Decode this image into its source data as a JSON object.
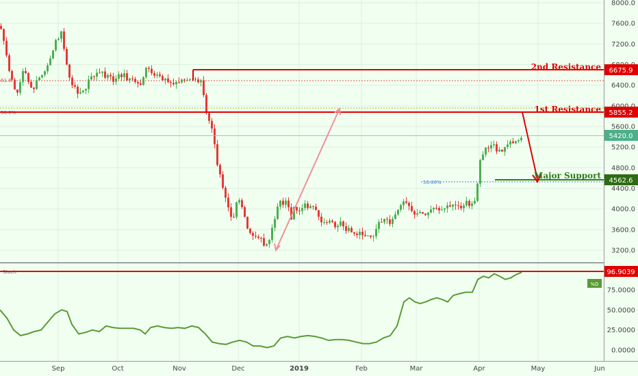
{
  "chart_data": [
    {
      "type": "candlestick",
      "title": "",
      "ylim": [
        3000,
        8000
      ],
      "y_ticks": [
        8000.0,
        7600.0,
        7200.0,
        6800.0,
        6400.0,
        6000.0,
        5600.0,
        5200.0,
        4800.0,
        4400.0,
        4000.0,
        3600.0,
        3200.0
      ],
      "x_ticks": [
        "Sep",
        "Oct",
        "Nov",
        "Dec",
        "2019",
        "Feb",
        "Mar",
        "Apr",
        "May",
        "Jun"
      ],
      "price_path": [
        [
          0,
          7550
        ],
        [
          8,
          7000
        ],
        [
          15,
          6500
        ],
        [
          22,
          6200
        ],
        [
          32,
          6700
        ],
        [
          45,
          6300
        ],
        [
          58,
          6600
        ],
        [
          68,
          6800
        ],
        [
          78,
          7200
        ],
        [
          88,
          7450
        ],
        [
          96,
          6750
        ],
        [
          104,
          6400
        ],
        [
          115,
          6250
        ],
        [
          125,
          6400
        ],
        [
          135,
          6600
        ],
        [
          145,
          6700
        ],
        [
          155,
          6550
        ],
        [
          165,
          6500
        ],
        [
          175,
          6600
        ],
        [
          185,
          6550
        ],
        [
          195,
          6500
        ],
        [
          205,
          6350
        ],
        [
          212,
          6700
        ],
        [
          222,
          6600
        ],
        [
          232,
          6550
        ],
        [
          242,
          6500
        ],
        [
          252,
          6400
        ],
        [
          262,
          6450
        ],
        [
          272,
          6500
        ],
        [
          282,
          6550
        ],
        [
          292,
          6450
        ],
        [
          298,
          6000
        ],
        [
          304,
          5700
        ],
        [
          310,
          5450
        ],
        [
          316,
          4900
        ],
        [
          322,
          4500
        ],
        [
          328,
          4200
        ],
        [
          334,
          3900
        ],
        [
          340,
          3800
        ],
        [
          346,
          4300
        ],
        [
          352,
          4000
        ],
        [
          358,
          3700
        ],
        [
          364,
          3500
        ],
        [
          370,
          3400
        ],
        [
          376,
          3450
        ],
        [
          382,
          3350
        ],
        [
          388,
          3300
        ],
        [
          394,
          3500
        ],
        [
          400,
          3850
        ],
        [
          406,
          4150
        ],
        [
          412,
          4050
        ],
        [
          418,
          4150
        ],
        [
          424,
          3850
        ],
        [
          430,
          4050
        ],
        [
          436,
          3950
        ],
        [
          442,
          4100
        ],
        [
          450,
          4000
        ],
        [
          458,
          4100
        ],
        [
          464,
          3800
        ],
        [
          472,
          3700
        ],
        [
          480,
          3750
        ],
        [
          488,
          3650
        ],
        [
          496,
          3700
        ],
        [
          504,
          3600
        ],
        [
          512,
          3550
        ],
        [
          520,
          3500
        ],
        [
          528,
          3550
        ],
        [
          536,
          3500
        ],
        [
          544,
          3450
        ],
        [
          552,
          3700
        ],
        [
          560,
          3750
        ],
        [
          568,
          3750
        ],
        [
          576,
          3900
        ],
        [
          584,
          4100
        ],
        [
          592,
          4150
        ],
        [
          598,
          3950
        ],
        [
          606,
          3900
        ],
        [
          614,
          3900
        ],
        [
          622,
          3950
        ],
        [
          630,
          3950
        ],
        [
          638,
          4000
        ],
        [
          646,
          4000
        ],
        [
          654,
          4050
        ],
        [
          662,
          4050
        ],
        [
          670,
          4050
        ],
        [
          678,
          4100
        ],
        [
          686,
          4100
        ],
        [
          694,
          4200
        ],
        [
          700,
          4900
        ],
        [
          706,
          5100
        ],
        [
          712,
          5200
        ],
        [
          718,
          5250
        ],
        [
          724,
          5150
        ],
        [
          730,
          5100
        ],
        [
          736,
          5150
        ],
        [
          742,
          5250
        ],
        [
          748,
          5300
        ],
        [
          754,
          5350
        ],
        [
          760,
          5420
        ]
      ],
      "price_levels": [
        {
          "label": "2nd Resistance",
          "value": "6675.9",
          "color": "#e00000"
        },
        {
          "label": "1st Resistance",
          "value": "5855.2",
          "color": "#e00000"
        },
        {
          "label": "",
          "value": "5420.0",
          "color": "#4caf8a"
        },
        {
          "label": "Major Support",
          "value": "4562.6",
          "color": "#2e7d1e"
        }
      ],
      "fib_labels": [
        "61.8",
        "50.0%",
        "50.00%"
      ]
    },
    {
      "type": "line",
      "indicator": "Stoch",
      "ylim": [
        -10,
        110
      ],
      "y_ticks": [
        "75.0000",
        "50.0000",
        "25.0000",
        "0.0000"
      ],
      "series": [
        {
          "name": "%D",
          "color": "#5a9a35",
          "points": [
            [
              0,
              50
            ],
            [
              10,
              40
            ],
            [
              20,
              25
            ],
            [
              30,
              18
            ],
            [
              40,
              20
            ],
            [
              50,
              23
            ],
            [
              60,
              25
            ],
            [
              70,
              35
            ],
            [
              80,
              45
            ],
            [
              90,
              50
            ],
            [
              98,
              48
            ],
            [
              105,
              32
            ],
            [
              115,
              20
            ],
            [
              125,
              22
            ],
            [
              135,
              25
            ],
            [
              145,
              23
            ],
            [
              155,
              30
            ],
            [
              165,
              28
            ],
            [
              175,
              27
            ],
            [
              185,
              27
            ],
            [
              195,
              27
            ],
            [
              205,
              25
            ],
            [
              212,
              20
            ],
            [
              220,
              28
            ],
            [
              230,
              30
            ],
            [
              240,
              28
            ],
            [
              250,
              27
            ],
            [
              260,
              28
            ],
            [
              270,
              27
            ],
            [
              280,
              30
            ],
            [
              290,
              28
            ],
            [
              300,
              20
            ],
            [
              310,
              10
            ],
            [
              320,
              8
            ],
            [
              330,
              7
            ],
            [
              340,
              10
            ],
            [
              350,
              12
            ],
            [
              360,
              10
            ],
            [
              370,
              5
            ],
            [
              380,
              5
            ],
            [
              390,
              3
            ],
            [
              400,
              5
            ],
            [
              410,
              15
            ],
            [
              420,
              17
            ],
            [
              430,
              15
            ],
            [
              440,
              17
            ],
            [
              450,
              18
            ],
            [
              460,
              17
            ],
            [
              470,
              15
            ],
            [
              480,
              12
            ],
            [
              490,
              13
            ],
            [
              500,
              13
            ],
            [
              510,
              12
            ],
            [
              520,
              10
            ],
            [
              530,
              8
            ],
            [
              540,
              8
            ],
            [
              550,
              10
            ],
            [
              560,
              15
            ],
            [
              570,
              18
            ],
            [
              580,
              30
            ],
            [
              590,
              60
            ],
            [
              598,
              65
            ],
            [
              606,
              60
            ],
            [
              614,
              58
            ],
            [
              622,
              60
            ],
            [
              630,
              63
            ],
            [
              638,
              65
            ],
            [
              646,
              63
            ],
            [
              654,
              60
            ],
            [
              662,
              68
            ],
            [
              670,
              70
            ],
            [
              680,
              72
            ],
            [
              690,
              72
            ],
            [
              698,
              88
            ],
            [
              706,
              92
            ],
            [
              714,
              90
            ],
            [
              722,
              95
            ],
            [
              730,
              92
            ],
            [
              738,
              88
            ],
            [
              746,
              90
            ],
            [
              754,
              94
            ],
            [
              762,
              96.9
            ]
          ]
        }
      ],
      "reference_level": "96.9039"
    }
  ]
}
